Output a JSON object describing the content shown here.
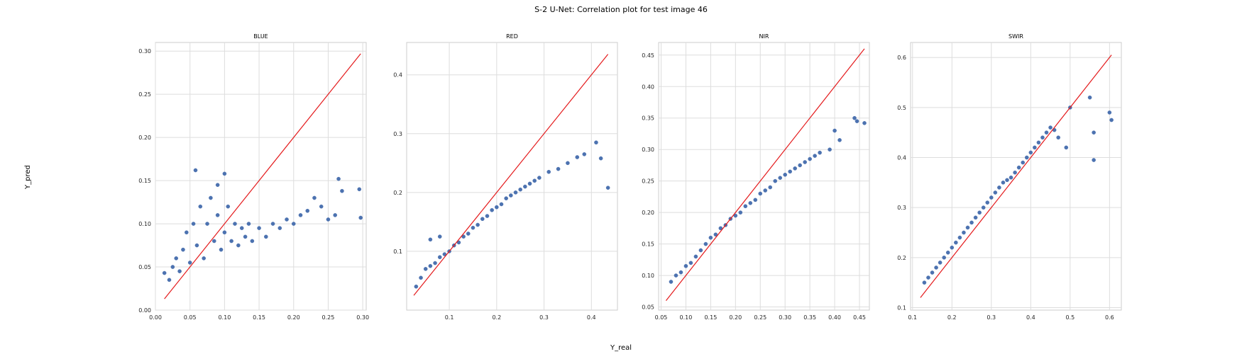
{
  "figure": {
    "title": "S-2 U-Net: Correlation plot for test image 46",
    "xlabel": "Y_real",
    "ylabel": "Y_pred"
  },
  "colors": {
    "points": "#4c72b0",
    "identity_line": "#e41a1c",
    "grid": "#dddddd",
    "spine": "#cccccc"
  },
  "chart_data": [
    {
      "type": "scatter",
      "title": "BLUE",
      "xlim": [
        0.0,
        0.305
      ],
      "ylim": [
        0.0,
        0.31
      ],
      "xticks": [
        "0.00",
        "0.05",
        "0.10",
        "0.15",
        "0.20",
        "0.25",
        "0.30"
      ],
      "yticks": [
        "0.00",
        "0.05",
        "0.10",
        "0.15",
        "0.20",
        "0.25",
        "0.30"
      ],
      "identity_line": [
        0.013,
        0.297
      ],
      "grid": true,
      "points": [
        [
          0.013,
          0.043
        ],
        [
          0.02,
          0.035
        ],
        [
          0.025,
          0.05
        ],
        [
          0.03,
          0.06
        ],
        [
          0.035,
          0.045
        ],
        [
          0.04,
          0.07
        ],
        [
          0.045,
          0.09
        ],
        [
          0.05,
          0.055
        ],
        [
          0.055,
          0.1
        ],
        [
          0.06,
          0.075
        ],
        [
          0.065,
          0.12
        ],
        [
          0.07,
          0.06
        ],
        [
          0.075,
          0.1
        ],
        [
          0.08,
          0.13
        ],
        [
          0.085,
          0.08
        ],
        [
          0.09,
          0.11
        ],
        [
          0.095,
          0.07
        ],
        [
          0.1,
          0.09
        ],
        [
          0.105,
          0.12
        ],
        [
          0.11,
          0.08
        ],
        [
          0.115,
          0.1
        ],
        [
          0.12,
          0.075
        ],
        [
          0.125,
          0.095
        ],
        [
          0.13,
          0.085
        ],
        [
          0.135,
          0.1
        ],
        [
          0.14,
          0.08
        ],
        [
          0.15,
          0.095
        ],
        [
          0.16,
          0.085
        ],
        [
          0.17,
          0.1
        ],
        [
          0.18,
          0.095
        ],
        [
          0.19,
          0.105
        ],
        [
          0.2,
          0.1
        ],
        [
          0.21,
          0.11
        ],
        [
          0.22,
          0.115
        ],
        [
          0.23,
          0.13
        ],
        [
          0.24,
          0.12
        ],
        [
          0.25,
          0.105
        ],
        [
          0.26,
          0.11
        ],
        [
          0.265,
          0.152
        ],
        [
          0.27,
          0.138
        ],
        [
          0.295,
          0.14
        ],
        [
          0.297,
          0.107
        ],
        [
          0.058,
          0.162
        ],
        [
          0.1,
          0.158
        ],
        [
          0.09,
          0.145
        ]
      ]
    },
    {
      "type": "scatter",
      "title": "RED",
      "xlim": [
        0.01,
        0.455
      ],
      "ylim": [
        0.0,
        0.455
      ],
      "xticks": [
        "0.1",
        "0.2",
        "0.3",
        "0.4"
      ],
      "yticks": [
        "0.1",
        "0.2",
        "0.3",
        "0.4"
      ],
      "identity_line": [
        0.025,
        0.435
      ],
      "grid": true,
      "points": [
        [
          0.03,
          0.04
        ],
        [
          0.04,
          0.055
        ],
        [
          0.05,
          0.07
        ],
        [
          0.06,
          0.075
        ],
        [
          0.07,
          0.08
        ],
        [
          0.08,
          0.09
        ],
        [
          0.09,
          0.095
        ],
        [
          0.1,
          0.1
        ],
        [
          0.11,
          0.11
        ],
        [
          0.12,
          0.115
        ],
        [
          0.13,
          0.125
        ],
        [
          0.14,
          0.13
        ],
        [
          0.15,
          0.14
        ],
        [
          0.16,
          0.145
        ],
        [
          0.17,
          0.155
        ],
        [
          0.18,
          0.16
        ],
        [
          0.19,
          0.17
        ],
        [
          0.2,
          0.175
        ],
        [
          0.21,
          0.18
        ],
        [
          0.22,
          0.19
        ],
        [
          0.23,
          0.195
        ],
        [
          0.24,
          0.2
        ],
        [
          0.25,
          0.205
        ],
        [
          0.26,
          0.21
        ],
        [
          0.27,
          0.215
        ],
        [
          0.28,
          0.22
        ],
        [
          0.29,
          0.225
        ],
        [
          0.31,
          0.235
        ],
        [
          0.33,
          0.24
        ],
        [
          0.35,
          0.25
        ],
        [
          0.37,
          0.26
        ],
        [
          0.385,
          0.265
        ],
        [
          0.41,
          0.285
        ],
        [
          0.42,
          0.258
        ],
        [
          0.435,
          0.208
        ],
        [
          0.08,
          0.125
        ],
        [
          0.06,
          0.12
        ]
      ]
    },
    {
      "type": "scatter",
      "title": "NIR",
      "xlim": [
        0.045,
        0.47
      ],
      "ylim": [
        0.045,
        0.47
      ],
      "xticks": [
        "0.05",
        "0.10",
        "0.15",
        "0.20",
        "0.25",
        "0.30",
        "0.35",
        "0.40",
        "0.45"
      ],
      "yticks": [
        "0.05",
        "0.10",
        "0.15",
        "0.20",
        "0.25",
        "0.30",
        "0.35",
        "0.40",
        "0.45"
      ],
      "identity_line": [
        0.06,
        0.46
      ],
      "grid": true,
      "points": [
        [
          0.07,
          0.09
        ],
        [
          0.08,
          0.1
        ],
        [
          0.09,
          0.105
        ],
        [
          0.1,
          0.115
        ],
        [
          0.11,
          0.12
        ],
        [
          0.12,
          0.13
        ],
        [
          0.13,
          0.14
        ],
        [
          0.14,
          0.15
        ],
        [
          0.15,
          0.16
        ],
        [
          0.16,
          0.165
        ],
        [
          0.17,
          0.175
        ],
        [
          0.18,
          0.18
        ],
        [
          0.19,
          0.19
        ],
        [
          0.2,
          0.195
        ],
        [
          0.21,
          0.2
        ],
        [
          0.22,
          0.21
        ],
        [
          0.23,
          0.215
        ],
        [
          0.24,
          0.22
        ],
        [
          0.25,
          0.23
        ],
        [
          0.26,
          0.235
        ],
        [
          0.27,
          0.24
        ],
        [
          0.28,
          0.25
        ],
        [
          0.29,
          0.255
        ],
        [
          0.3,
          0.26
        ],
        [
          0.31,
          0.265
        ],
        [
          0.32,
          0.27
        ],
        [
          0.33,
          0.275
        ],
        [
          0.34,
          0.28
        ],
        [
          0.35,
          0.285
        ],
        [
          0.36,
          0.29
        ],
        [
          0.37,
          0.295
        ],
        [
          0.39,
          0.3
        ],
        [
          0.4,
          0.33
        ],
        [
          0.41,
          0.315
        ],
        [
          0.44,
          0.35
        ],
        [
          0.445,
          0.345
        ],
        [
          0.46,
          0.342
        ]
      ]
    },
    {
      "type": "scatter",
      "title": "SWIR",
      "xlim": [
        0.095,
        0.63
      ],
      "ylim": [
        0.095,
        0.63
      ],
      "xticks": [
        "0.1",
        "0.2",
        "0.3",
        "0.4",
        "0.5",
        "0.6"
      ],
      "yticks": [
        "0.1",
        "0.2",
        "0.3",
        "0.4",
        "0.5",
        "0.6"
      ],
      "identity_line": [
        0.12,
        0.605
      ],
      "grid": true,
      "points": [
        [
          0.13,
          0.15
        ],
        [
          0.14,
          0.16
        ],
        [
          0.15,
          0.17
        ],
        [
          0.16,
          0.18
        ],
        [
          0.17,
          0.19
        ],
        [
          0.18,
          0.2
        ],
        [
          0.19,
          0.21
        ],
        [
          0.2,
          0.22
        ],
        [
          0.21,
          0.23
        ],
        [
          0.22,
          0.24
        ],
        [
          0.23,
          0.25
        ],
        [
          0.24,
          0.26
        ],
        [
          0.25,
          0.27
        ],
        [
          0.26,
          0.28
        ],
        [
          0.27,
          0.29
        ],
        [
          0.28,
          0.3
        ],
        [
          0.29,
          0.31
        ],
        [
          0.3,
          0.32
        ],
        [
          0.31,
          0.33
        ],
        [
          0.32,
          0.34
        ],
        [
          0.33,
          0.35
        ],
        [
          0.34,
          0.355
        ],
        [
          0.35,
          0.36
        ],
        [
          0.36,
          0.37
        ],
        [
          0.37,
          0.38
        ],
        [
          0.38,
          0.39
        ],
        [
          0.39,
          0.4
        ],
        [
          0.4,
          0.41
        ],
        [
          0.41,
          0.42
        ],
        [
          0.42,
          0.43
        ],
        [
          0.43,
          0.44
        ],
        [
          0.44,
          0.45
        ],
        [
          0.45,
          0.46
        ],
        [
          0.46,
          0.455
        ],
        [
          0.47,
          0.44
        ],
        [
          0.49,
          0.42
        ],
        [
          0.5,
          0.5
        ],
        [
          0.55,
          0.52
        ],
        [
          0.56,
          0.45
        ],
        [
          0.56,
          0.395
        ],
        [
          0.6,
          0.49
        ],
        [
          0.605,
          0.475
        ]
      ]
    }
  ]
}
